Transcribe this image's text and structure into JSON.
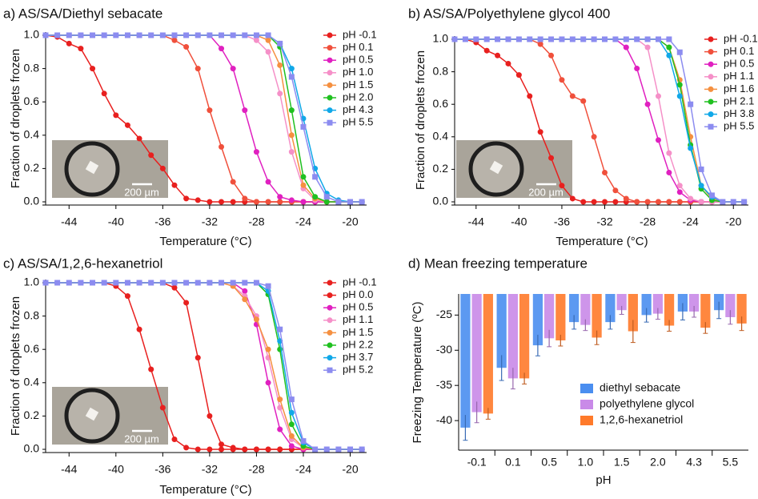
{
  "chart_data": [
    {
      "type": "line",
      "title": "a) AS/SA/Diethyl sebacate",
      "xlabel": "Temperature (°C)",
      "ylabel": "Fraction of droplets frozen",
      "x": [
        -46,
        -45,
        -44,
        -43,
        -42,
        -41,
        -40,
        -39,
        -38,
        -37,
        -36,
        -35,
        -34,
        -33,
        -32,
        -31,
        -30,
        -29,
        -28,
        -27,
        -26,
        -25,
        -24,
        -23,
        -22,
        -21,
        -20,
        -19
      ],
      "xlim": [
        -46,
        -18.6
      ],
      "xticks": [
        -44,
        -40,
        -36,
        -32,
        -28,
        -24,
        -20
      ],
      "ylim": [
        0,
        1
      ],
      "yticks": [
        {
          "value": 0,
          "label": "0.0"
        },
        0.2,
        0.4,
        0.6,
        0.8,
        {
          "value": 1,
          "label": "1.0"
        }
      ],
      "legend": "right",
      "inset_scale_label": "200 µm",
      "series": [
        {
          "name": "pH -0.1",
          "color": "#e8201f",
          "values": [
            1,
            0.99,
            0.95,
            0.92,
            0.8,
            0.65,
            0.52,
            0.46,
            0.38,
            0.28,
            0.2,
            0.1,
            0.02,
            0.01,
            0,
            0,
            0,
            0,
            0,
            0,
            0,
            0,
            0,
            0,
            0,
            0,
            0,
            0
          ]
        },
        {
          "name": "pH 0.1",
          "color": "#f0503c",
          "values": [
            1,
            1,
            1,
            1,
            1,
            1,
            1,
            1,
            1,
            1,
            1,
            0.97,
            0.93,
            0.8,
            0.55,
            0.33,
            0.12,
            0.02,
            0,
            0,
            0,
            0,
            0,
            0,
            0,
            0,
            0,
            0
          ]
        },
        {
          "name": "pH 0.5",
          "color": "#e020c0",
          "values": [
            1,
            1,
            1,
            1,
            1,
            1,
            1,
            1,
            1,
            1,
            1,
            1,
            1,
            1,
            1,
            0.92,
            0.8,
            0.55,
            0.3,
            0.12,
            0.03,
            0.01,
            0,
            0,
            0,
            0,
            0,
            0
          ]
        },
        {
          "name": "pH 1.0",
          "color": "#f590c8",
          "values": [
            1,
            1,
            1,
            1,
            1,
            1,
            1,
            1,
            1,
            1,
            1,
            1,
            1,
            1,
            1,
            1,
            1,
            1,
            0.97,
            0.9,
            0.65,
            0.3,
            0.08,
            0.01,
            0,
            0,
            0,
            0
          ]
        },
        {
          "name": "pH 1.5",
          "color": "#f59040",
          "values": [
            1,
            1,
            1,
            1,
            1,
            1,
            1,
            1,
            1,
            1,
            1,
            1,
            1,
            1,
            1,
            1,
            1,
            1,
            1,
            0.97,
            0.82,
            0.4,
            0.1,
            0.02,
            0,
            0,
            0,
            0
          ]
        },
        {
          "name": "pH 2.0",
          "color": "#20c020",
          "values": [
            1,
            1,
            1,
            1,
            1,
            1,
            1,
            1,
            1,
            1,
            1,
            1,
            1,
            1,
            1,
            1,
            1,
            1,
            1,
            1,
            0.93,
            0.55,
            0.15,
            0.03,
            0,
            0,
            0,
            0
          ]
        },
        {
          "name": "pH 4.3",
          "color": "#10a8e8",
          "values": [
            1,
            1,
            1,
            1,
            1,
            1,
            1,
            1,
            1,
            1,
            1,
            1,
            1,
            1,
            1,
            1,
            1,
            1,
            1,
            1,
            0.95,
            0.8,
            0.5,
            0.2,
            0.05,
            0.01,
            0,
            0
          ]
        },
        {
          "name": "pH 5.5",
          "color": "#8c8cf0",
          "marker": "square",
          "values": [
            1,
            1,
            1,
            1,
            1,
            1,
            1,
            1,
            1,
            1,
            1,
            1,
            1,
            1,
            1,
            1,
            1,
            1,
            1,
            1,
            0.95,
            0.75,
            0.45,
            0.15,
            0.03,
            0,
            0,
            0
          ]
        }
      ]
    },
    {
      "type": "line",
      "title": "b) AS/SA/Polyethylene glycol 400",
      "xlabel": "Temperature (°C)",
      "ylabel": "Fraction of droplets frozen",
      "x": [
        -46,
        -45,
        -44,
        -43,
        -42,
        -41,
        -40,
        -39,
        -38,
        -37,
        -36,
        -35,
        -34,
        -33,
        -32,
        -31,
        -30,
        -29,
        -28,
        -27,
        -26,
        -25,
        -24,
        -23,
        -22,
        -21,
        -20,
        -19
      ],
      "xlim": [
        -46,
        -18.6
      ],
      "xticks": [
        -44,
        -40,
        -36,
        -32,
        -28,
        -24,
        -20
      ],
      "ylim": [
        0,
        1
      ],
      "yticks": [
        {
          "value": 0,
          "label": "0.0"
        },
        0.2,
        0.4,
        0.6,
        0.8,
        {
          "value": 1,
          "label": "1.0"
        }
      ],
      "legend": "right",
      "inset_scale_label": "200 µm",
      "series": [
        {
          "name": "pH -0.1",
          "color": "#e8201f",
          "values": [
            1,
            1,
            0.98,
            0.93,
            0.9,
            0.85,
            0.78,
            0.65,
            0.43,
            0.27,
            0.1,
            0.02,
            0,
            0,
            0,
            0,
            0,
            0,
            0,
            0,
            0,
            0,
            0,
            0,
            0,
            0,
            0,
            0
          ]
        },
        {
          "name": "pH 0.1",
          "color": "#f0503c",
          "values": [
            1,
            1,
            1,
            1,
            1,
            1,
            1,
            1,
            0.97,
            0.9,
            0.75,
            0.65,
            0.62,
            0.4,
            0.18,
            0.07,
            0.02,
            0,
            0,
            0,
            0,
            0,
            0,
            0,
            0,
            0,
            0,
            0
          ]
        },
        {
          "name": "pH 0.5",
          "color": "#e020c0",
          "values": [
            1,
            1,
            1,
            1,
            1,
            1,
            1,
            1,
            1,
            1,
            1,
            1,
            1,
            1,
            1,
            1,
            0.95,
            0.82,
            0.6,
            0.38,
            0.18,
            0.06,
            0.01,
            0,
            0,
            0,
            0,
            0
          ]
        },
        {
          "name": "pH 1.1",
          "color": "#f590c8",
          "values": [
            1,
            1,
            1,
            1,
            1,
            1,
            1,
            1,
            1,
            1,
            1,
            1,
            1,
            1,
            1,
            1,
            1,
            1,
            0.95,
            0.65,
            0.3,
            0.1,
            0.02,
            0,
            0,
            0,
            0,
            0
          ]
        },
        {
          "name": "pH 1.6",
          "color": "#f59040",
          "values": [
            1,
            1,
            1,
            1,
            1,
            1,
            1,
            1,
            1,
            1,
            1,
            1,
            1,
            1,
            1,
            1,
            1,
            1,
            1,
            1,
            0.95,
            0.75,
            0.4,
            0.1,
            0.02,
            0,
            0,
            0
          ]
        },
        {
          "name": "pH 2.1",
          "color": "#20c020",
          "values": [
            1,
            1,
            1,
            1,
            1,
            1,
            1,
            1,
            1,
            1,
            1,
            1,
            1,
            1,
            1,
            1,
            1,
            1,
            1,
            1,
            0.95,
            0.72,
            0.35,
            0.08,
            0.01,
            0,
            0,
            0
          ]
        },
        {
          "name": "pH 3.8",
          "color": "#10a8e8",
          "values": [
            1,
            1,
            1,
            1,
            1,
            1,
            1,
            1,
            1,
            1,
            1,
            1,
            1,
            1,
            1,
            1,
            1,
            1,
            1,
            1,
            0.9,
            0.65,
            0.33,
            0.1,
            0.03,
            0,
            0,
            0
          ]
        },
        {
          "name": "pH 5.5",
          "color": "#8c8cf0",
          "marker": "square",
          "values": [
            1,
            1,
            1,
            1,
            1,
            1,
            1,
            1,
            1,
            1,
            1,
            1,
            1,
            1,
            1,
            1,
            1,
            1,
            1,
            1,
            1,
            0.92,
            0.6,
            0.2,
            0.04,
            0,
            0,
            0
          ]
        }
      ]
    },
    {
      "type": "line",
      "title": "c) AS/SA/1,2,6-hexanetriol",
      "xlabel": "Temperature (°C)",
      "ylabel": "Fraction of droplets frozen",
      "x": [
        -46,
        -45,
        -44,
        -43,
        -42,
        -41,
        -40,
        -39,
        -38,
        -37,
        -36,
        -35,
        -34,
        -33,
        -32,
        -31,
        -30,
        -29,
        -28,
        -27,
        -26,
        -25,
        -24,
        -23,
        -22,
        -21,
        -20,
        -19
      ],
      "xlim": [
        -46,
        -18.6
      ],
      "xticks": [
        -44,
        -40,
        -36,
        -32,
        -28,
        -24,
        -20
      ],
      "ylim": [
        0,
        1
      ],
      "yticks": [
        {
          "value": 0,
          "label": "0.0"
        },
        0.2,
        0.4,
        0.6,
        0.8,
        {
          "value": 1,
          "label": "1.0"
        }
      ],
      "legend": "right",
      "inset_scale_label": "200 µm",
      "series": [
        {
          "name": "pH -0.1",
          "color": "#e8201f",
          "values": [
            1,
            1,
            1,
            1,
            1,
            1,
            0.98,
            0.92,
            0.72,
            0.48,
            0.25,
            0.06,
            0.01,
            0,
            0,
            0,
            0,
            0,
            0,
            0,
            0,
            0,
            0,
            0,
            0,
            0,
            0,
            0
          ]
        },
        {
          "name": "pH 0.0",
          "color": "#e8201f",
          "values": [
            1,
            1,
            1,
            1,
            1,
            1,
            1,
            1,
            1,
            1,
            1,
            0.97,
            0.88,
            0.55,
            0.2,
            0.03,
            0.01,
            0,
            0,
            0,
            0,
            0,
            0,
            0,
            0,
            0,
            0,
            0
          ]
        },
        {
          "name": "pH 0.5",
          "color": "#e020c0",
          "values": [
            1,
            1,
            1,
            1,
            1,
            1,
            1,
            1,
            1,
            1,
            1,
            1,
            1,
            1,
            1,
            1,
            1,
            0.95,
            0.75,
            0.4,
            0.12,
            0.02,
            0,
            0,
            0,
            0,
            0,
            0
          ]
        },
        {
          "name": "pH 1.1",
          "color": "#f590c8",
          "values": [
            1,
            1,
            1,
            1,
            1,
            1,
            1,
            1,
            1,
            1,
            1,
            1,
            1,
            1,
            1,
            1,
            0.98,
            0.92,
            0.8,
            0.55,
            0.25,
            0.06,
            0.01,
            0,
            0,
            0,
            0,
            0
          ]
        },
        {
          "name": "pH 1.5",
          "color": "#f59040",
          "values": [
            1,
            1,
            1,
            1,
            1,
            1,
            1,
            1,
            1,
            1,
            1,
            1,
            1,
            1,
            1,
            1,
            0.98,
            0.9,
            0.78,
            0.6,
            0.3,
            0.08,
            0.01,
            0,
            0,
            0,
            0,
            0
          ]
        },
        {
          "name": "pH 2.2",
          "color": "#20c020",
          "values": [
            1,
            1,
            1,
            1,
            1,
            1,
            1,
            1,
            1,
            1,
            1,
            1,
            1,
            1,
            1,
            1,
            1,
            1,
            1,
            0.93,
            0.6,
            0.15,
            0.02,
            0,
            0,
            0,
            0,
            0
          ]
        },
        {
          "name": "pH 3.7",
          "color": "#10a8e8",
          "values": [
            1,
            1,
            1,
            1,
            1,
            1,
            1,
            1,
            1,
            1,
            1,
            1,
            1,
            1,
            1,
            1,
            1,
            1,
            1,
            0.95,
            0.65,
            0.22,
            0.04,
            0,
            0,
            0,
            0,
            0
          ]
        },
        {
          "name": "pH 5.2",
          "color": "#8c8cf0",
          "marker": "square",
          "values": [
            1,
            1,
            1,
            1,
            1,
            1,
            1,
            1,
            1,
            1,
            1,
            1,
            1,
            1,
            1,
            1,
            1,
            1,
            1,
            0.98,
            0.72,
            0.3,
            0.05,
            0,
            0,
            0,
            0,
            0
          ]
        }
      ]
    },
    {
      "type": "bar",
      "title": "d) Mean freezing temperature",
      "xlabel": "pH",
      "ylabel": "Freezing Temperature (ºC)",
      "categories": [
        "-0.1",
        "0.1",
        "0.5",
        "1.0",
        "1.5",
        "2.0",
        "4.3",
        "5.5"
      ],
      "ylim": [
        -44.2,
        -22
      ],
      "yticks": [
        -25,
        -30,
        -35,
        -40
      ],
      "legend": "lower right",
      "series": [
        {
          "name": "diethyl sebacate",
          "color": "#4a8ef0",
          "values": [
            -41,
            -32.5,
            -29.3,
            -26,
            -26,
            -25,
            -24.5,
            -24.3
          ],
          "errors": [
            1.8,
            1.8,
            1.5,
            1,
            1,
            1,
            1.2,
            1.2
          ]
        },
        {
          "name": "polyethylene glycol",
          "color": "#c98ae8",
          "values": [
            -38.8,
            -34,
            -28.3,
            -26.4,
            -24.3,
            -24.8,
            -24.5,
            -25.3
          ],
          "errors": [
            1.5,
            1.5,
            1.2,
            0.8,
            0.6,
            0.8,
            0.8,
            1
          ]
        },
        {
          "name": "1,2,6-hexanetriol",
          "color": "#ff7a2a",
          "values": [
            -39,
            -34,
            -28.6,
            -28.2,
            -27.3,
            -26.5,
            -26.8,
            -26.2
          ],
          "errors": [
            0.8,
            0.8,
            0.8,
            1,
            1.6,
            0.8,
            0.8,
            1
          ]
        }
      ]
    }
  ]
}
